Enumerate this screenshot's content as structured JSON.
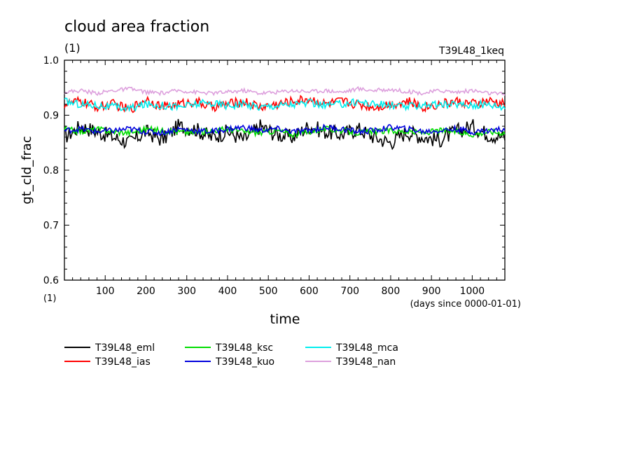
{
  "chart_data": {
    "type": "line",
    "title": "cloud area fraction",
    "title_units": "(1)",
    "subtitle_right": "T39L48_1keq",
    "xlabel": "time",
    "xunits": "(days since 0000-01-01)",
    "ylabel": "gt_cld_frac",
    "yunits": "(1)",
    "xlim": [
      0,
      1080
    ],
    "ylim": [
      0.6,
      1.0
    ],
    "x_ticks": [
      "100",
      "200",
      "300",
      "400",
      "500",
      "600",
      "700",
      "800",
      "900",
      "1000"
    ],
    "y_ticks": [
      "0.6",
      "0.7",
      "0.8",
      "0.9",
      "1.0"
    ],
    "x_tick_values": [
      100,
      200,
      300,
      400,
      500,
      600,
      700,
      800,
      900,
      1000
    ],
    "y_tick_values": [
      0.6,
      0.7,
      0.8,
      0.9,
      1.0
    ],
    "grid": false,
    "legend_position": "bottom",
    "series": [
      {
        "name": "T39L48_eml",
        "color": "#000000",
        "x": [
          0,
          40,
          80,
          120,
          160,
          200,
          240,
          280,
          320,
          360,
          400,
          440,
          480,
          520,
          560,
          600,
          640,
          680,
          720,
          760,
          800,
          840,
          880,
          920,
          960,
          1000,
          1040,
          1080
        ],
        "y": [
          0.86,
          0.88,
          0.87,
          0.86,
          0.85,
          0.87,
          0.855,
          0.88,
          0.875,
          0.86,
          0.87,
          0.855,
          0.88,
          0.865,
          0.86,
          0.88,
          0.87,
          0.865,
          0.875,
          0.86,
          0.85,
          0.87,
          0.86,
          0.855,
          0.87,
          0.88,
          0.865,
          0.86
        ]
      },
      {
        "name": "T39L48_ias",
        "color": "#ff0000",
        "x": [
          0,
          40,
          80,
          120,
          160,
          200,
          240,
          280,
          320,
          360,
          400,
          440,
          480,
          520,
          560,
          600,
          640,
          680,
          720,
          760,
          800,
          840,
          880,
          920,
          960,
          1000,
          1040,
          1080
        ],
        "y": [
          0.92,
          0.925,
          0.915,
          0.92,
          0.91,
          0.93,
          0.915,
          0.92,
          0.925,
          0.915,
          0.92,
          0.925,
          0.915,
          0.92,
          0.925,
          0.93,
          0.92,
          0.925,
          0.92,
          0.915,
          0.92,
          0.925,
          0.915,
          0.92,
          0.925,
          0.92,
          0.925,
          0.92
        ]
      },
      {
        "name": "T39L48_ksc",
        "color": "#00dd00",
        "x": [
          0,
          40,
          80,
          120,
          160,
          200,
          240,
          280,
          320,
          360,
          400,
          440,
          480,
          520,
          560,
          600,
          640,
          680,
          720,
          760,
          800,
          840,
          880,
          920,
          960,
          1000,
          1040,
          1080
        ],
        "y": [
          0.875,
          0.87,
          0.875,
          0.87,
          0.868,
          0.875,
          0.872,
          0.87,
          0.868,
          0.872,
          0.875,
          0.87,
          0.868,
          0.872,
          0.865,
          0.87,
          0.875,
          0.872,
          0.868,
          0.87,
          0.872,
          0.87,
          0.868,
          0.872,
          0.87,
          0.865,
          0.87,
          0.868
        ]
      },
      {
        "name": "T39L48_kuo",
        "color": "#0000dd",
        "x": [
          0,
          40,
          80,
          120,
          160,
          200,
          240,
          280,
          320,
          360,
          400,
          440,
          480,
          520,
          560,
          600,
          640,
          680,
          720,
          760,
          800,
          840,
          880,
          920,
          960,
          1000,
          1040,
          1080
        ],
        "y": [
          0.872,
          0.875,
          0.87,
          0.872,
          0.875,
          0.87,
          0.868,
          0.875,
          0.872,
          0.87,
          0.875,
          0.878,
          0.872,
          0.875,
          0.87,
          0.872,
          0.878,
          0.875,
          0.87,
          0.872,
          0.878,
          0.875,
          0.87,
          0.872,
          0.875,
          0.87,
          0.872,
          0.875
        ]
      },
      {
        "name": "T39L48_mca",
        "color": "#00eeee",
        "x": [
          0,
          40,
          80,
          120,
          160,
          200,
          240,
          280,
          320,
          360,
          400,
          440,
          480,
          520,
          560,
          600,
          640,
          680,
          720,
          760,
          800,
          840,
          880,
          920,
          960,
          1000,
          1040,
          1080
        ],
        "y": [
          0.925,
          0.92,
          0.918,
          0.915,
          0.912,
          0.92,
          0.918,
          0.915,
          0.92,
          0.922,
          0.918,
          0.92,
          0.915,
          0.918,
          0.92,
          0.922,
          0.918,
          0.92,
          0.925,
          0.92,
          0.918,
          0.915,
          0.92,
          0.918,
          0.92,
          0.918,
          0.92,
          0.915
        ]
      },
      {
        "name": "T39L48_nan",
        "color": "#dda0dd",
        "x": [
          0,
          40,
          80,
          120,
          160,
          200,
          240,
          280,
          320,
          360,
          400,
          440,
          480,
          520,
          560,
          600,
          640,
          680,
          720,
          760,
          800,
          840,
          880,
          920,
          960,
          1000,
          1040,
          1080
        ],
        "y": [
          0.942,
          0.945,
          0.94,
          0.945,
          0.948,
          0.942,
          0.94,
          0.945,
          0.942,
          0.94,
          0.942,
          0.945,
          0.94,
          0.942,
          0.945,
          0.943,
          0.945,
          0.942,
          0.948,
          0.945,
          0.947,
          0.943,
          0.94,
          0.945,
          0.942,
          0.945,
          0.94,
          0.938
        ]
      }
    ]
  }
}
